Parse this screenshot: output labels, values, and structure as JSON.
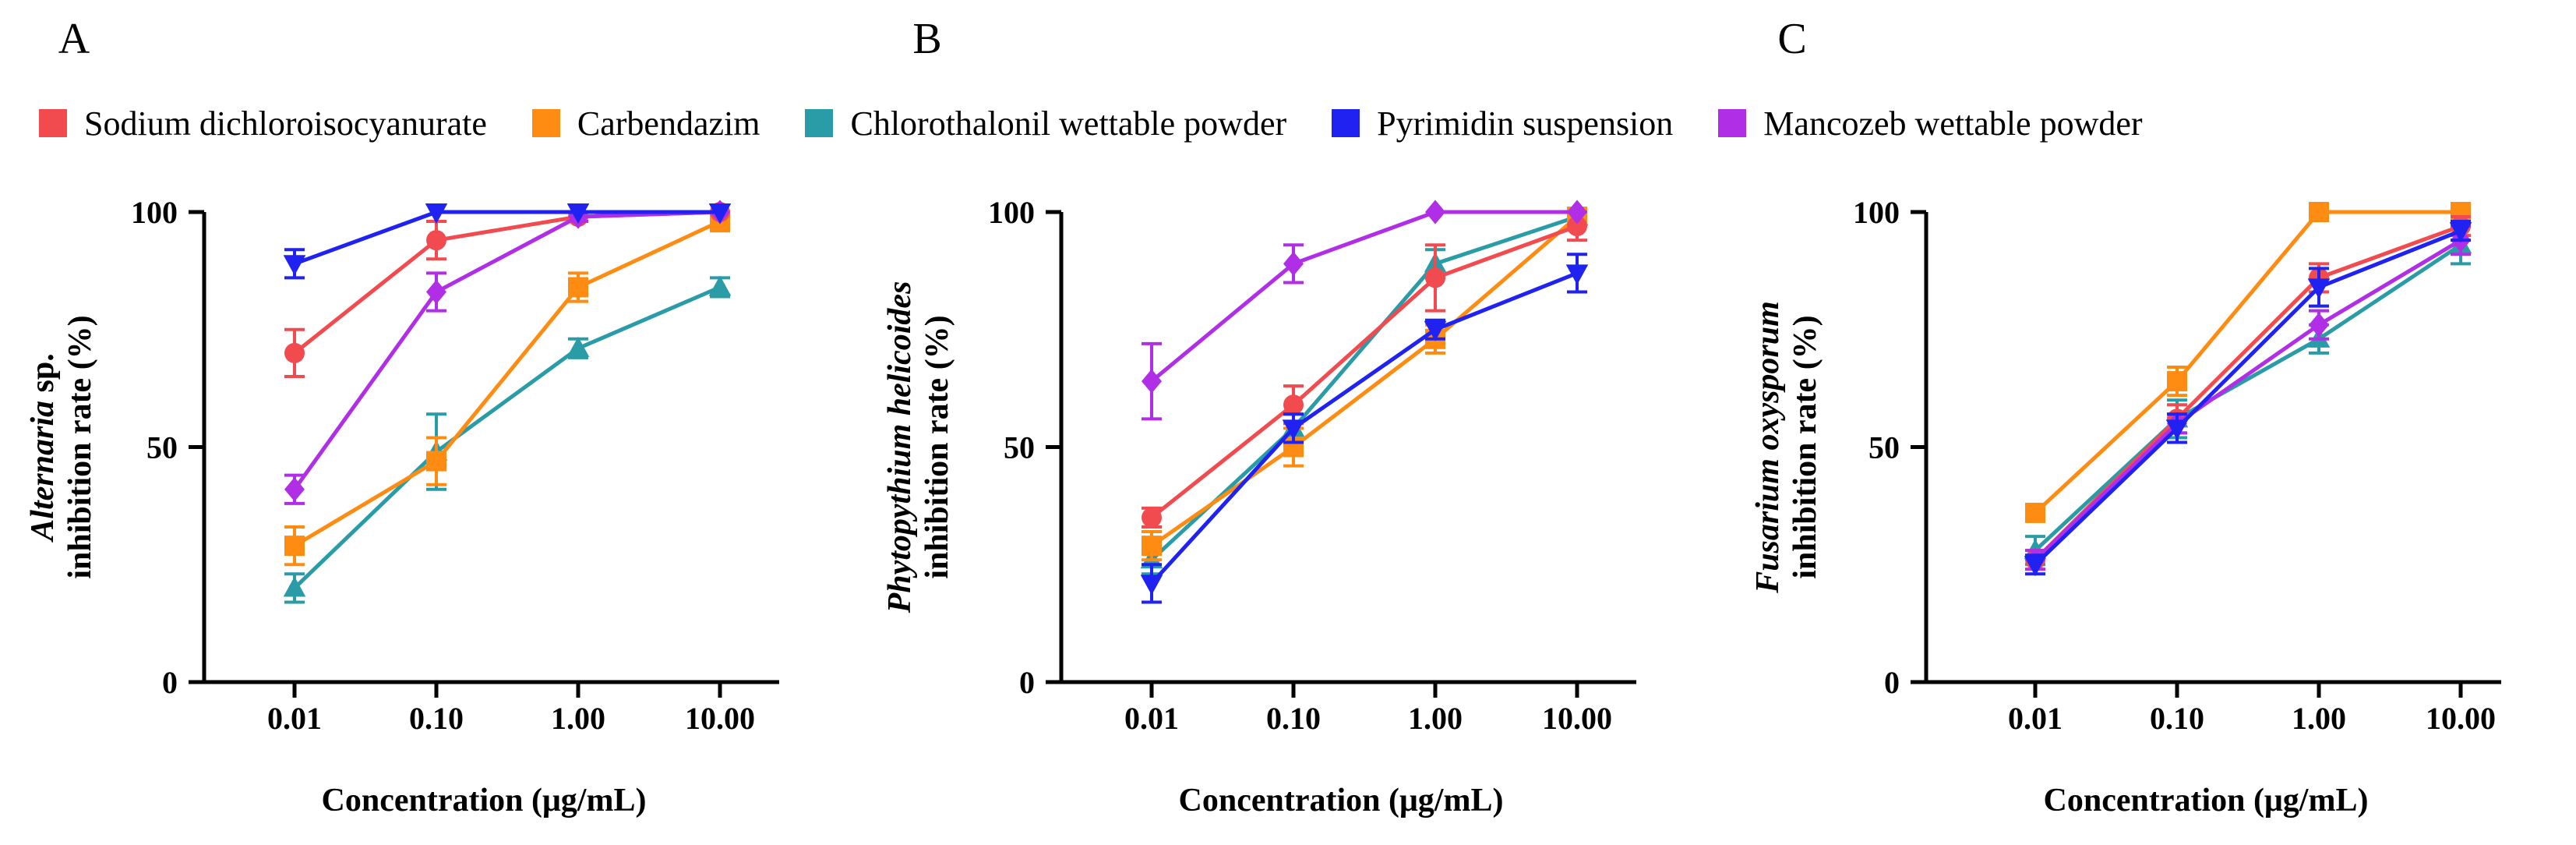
{
  "figure": {
    "panel_letters": [
      "A",
      "B",
      "C"
    ]
  },
  "legend": [
    {
      "label": "Sodium dichloroisocyanurate",
      "color": "#f24b4f",
      "marker": "circle"
    },
    {
      "label": "Carbendazim",
      "color": "#ff8c12",
      "marker": "square"
    },
    {
      "label": "Chlorothalonil wettable powder",
      "color": "#2a9ca7",
      "marker": "triangle-up"
    },
    {
      "label": "Pyrimidin suspension",
      "color": "#1f22f0",
      "marker": "triangle-down"
    },
    {
      "label": "Mancozeb wettable powder",
      "color": "#b02fe6",
      "marker": "diamond"
    }
  ],
  "chart_data": [
    {
      "type": "line",
      "panel": "A",
      "categories": [
        "0.01",
        "0.10",
        "1.00",
        "10.00"
      ],
      "xlabel": "Concentration (μg/mL)",
      "ylabel_species": "Alternaria",
      "ylabel_suffix": " sp.",
      "ylabel_line2": "inhibition rate (%)",
      "yticks": [
        "0",
        "50",
        "100"
      ],
      "ylim": [
        0,
        100
      ],
      "series": [
        {
          "name": "Sodium dichloroisocyanurate",
          "values": [
            70,
            94,
            99,
            100
          ],
          "errors": [
            5,
            4,
            1,
            0
          ]
        },
        {
          "name": "Carbendazim",
          "values": [
            29,
            47,
            84,
            98
          ],
          "errors": [
            4,
            5,
            3,
            2
          ]
        },
        {
          "name": "Chlorothalonil wettable powder",
          "values": [
            20,
            49,
            71,
            84
          ],
          "errors": [
            3,
            8,
            2,
            2
          ]
        },
        {
          "name": "Pyrimidin suspension",
          "values": [
            89,
            100,
            100,
            100
          ],
          "errors": [
            3,
            0,
            0,
            0
          ]
        },
        {
          "name": "Mancozeb wettable powder",
          "values": [
            41,
            83,
            99,
            100
          ],
          "errors": [
            3,
            4,
            1,
            0
          ]
        }
      ]
    },
    {
      "type": "line",
      "panel": "B",
      "categories": [
        "0.01",
        "0.10",
        "1.00",
        "10.00"
      ],
      "xlabel": "Concentration (μg/mL)",
      "ylabel_species": "Phytopythium helicoides",
      "ylabel_suffix": "",
      "ylabel_line2": "inhibition rate (%)",
      "yticks": [
        "0",
        "50",
        "100"
      ],
      "ylim": [
        0,
        100
      ],
      "series": [
        {
          "name": "Sodium dichloroisocyanurate",
          "values": [
            35,
            59,
            86,
            97
          ],
          "errors": [
            2,
            4,
            7,
            3
          ]
        },
        {
          "name": "Carbendazim",
          "values": [
            29,
            50,
            73,
            99
          ],
          "errors": [
            3,
            4,
            3,
            1
          ]
        },
        {
          "name": "Chlorothalonil wettable powder",
          "values": [
            26,
            54,
            89,
            99
          ],
          "errors": [
            3,
            3,
            3,
            1
          ]
        },
        {
          "name": "Pyrimidin suspension",
          "values": [
            21,
            54,
            75,
            87
          ],
          "errors": [
            4,
            3,
            2,
            4
          ]
        },
        {
          "name": "Mancozeb wettable powder",
          "values": [
            64,
            89,
            100,
            100
          ],
          "errors": [
            8,
            4,
            0,
            0
          ]
        }
      ]
    },
    {
      "type": "line",
      "panel": "C",
      "categories": [
        "0.01",
        "0.10",
        "1.00",
        "10.00"
      ],
      "xlabel": "Concentration (μg/mL)",
      "ylabel_species": "Fusarium oxysporum",
      "ylabel_suffix": "",
      "ylabel_line2": "inhibition rate (%)",
      "yticks": [
        "0",
        "50",
        "100"
      ],
      "ylim": [
        0,
        100
      ],
      "series": [
        {
          "name": "Sodium dichloroisocyanurate",
          "values": [
            26,
            56,
            86,
            97
          ],
          "errors": [
            2,
            3,
            3,
            2
          ]
        },
        {
          "name": "Carbendazim",
          "values": [
            36,
            64,
            100,
            100
          ],
          "errors": [
            1,
            3,
            0,
            0
          ]
        },
        {
          "name": "Chlorothalonil wettable powder",
          "values": [
            28,
            56,
            73,
            93
          ],
          "errors": [
            3,
            4,
            3,
            4
          ]
        },
        {
          "name": "Pyrimidin suspension",
          "values": [
            25,
            54,
            84,
            96
          ],
          "errors": [
            2,
            3,
            4,
            2
          ]
        },
        {
          "name": "Mancozeb wettable powder",
          "values": [
            26,
            55,
            76,
            94
          ],
          "errors": [
            2,
            2,
            3,
            3
          ]
        }
      ]
    }
  ]
}
